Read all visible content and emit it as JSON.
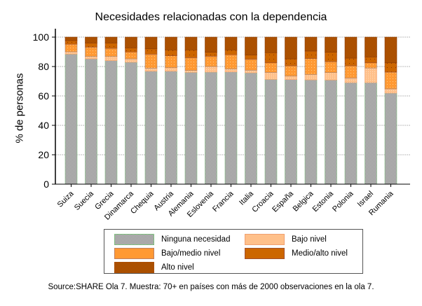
{
  "chart_data": {
    "type": "bar",
    "stacked": true,
    "title": "Necesidades relacionadas con la dependencia",
    "xlabel": "",
    "ylabel": "% de personas",
    "ylim": [
      0,
      100
    ],
    "yticks": [
      0,
      20,
      40,
      60,
      80,
      100
    ],
    "grid": true,
    "legend_position": "bottom",
    "categories": [
      "Suiza",
      "Suecia",
      "Grecia",
      "Dinamarca",
      "Chequia",
      "Austria",
      "Alemania",
      "Eslovenia",
      "Francia",
      "Italia",
      "Croacia",
      "España",
      "Belgica",
      "Estonia",
      "Polonia",
      "Israel",
      "Rumania"
    ],
    "series": [
      {
        "name": "Ninguna necesidad",
        "color": "#b4b4b4",
        "values": [
          88.4,
          85.2,
          84.0,
          82.9,
          76.8,
          76.8,
          76.0,
          76.2,
          76.3,
          75.7,
          71.2,
          71.1,
          70.9,
          70.8,
          69.0,
          69.0,
          61.9
        ]
      },
      {
        "name": "Bajo nivel",
        "color": "#ffc08a",
        "values": [
          1.6,
          1.6,
          2.8,
          2.3,
          2.1,
          2.4,
          1.3,
          3.8,
          2.1,
          1.8,
          4.8,
          2.4,
          3.7,
          5.1,
          3.2,
          10.0,
          2.9
        ]
      },
      {
        "name": "Bajo/medio nivel",
        "color": "#ff9933",
        "values": [
          5.2,
          6.4,
          5.6,
          4.7,
          9.5,
          8.1,
          8.7,
          7.0,
          9.6,
          7.5,
          6.5,
          7.0,
          10.8,
          7.4,
          8.3,
          3.5,
          11.4
        ]
      },
      {
        "name": "Medio/alto nivel",
        "color": "#cc6600",
        "values": [
          2.4,
          2.8,
          3.6,
          2.8,
          3.6,
          4.0,
          5.3,
          2.7,
          3.3,
          2.8,
          6.9,
          4.7,
          5.1,
          6.4,
          5.2,
          4.0,
          6.3
        ]
      },
      {
        "name": "Alto nivel",
        "color": "#a04800",
        "values": [
          2.4,
          4.0,
          4.0,
          7.3,
          8.0,
          8.7,
          8.7,
          10.3,
          8.7,
          12.2,
          10.6,
          14.8,
          9.5,
          10.3,
          14.3,
          13.5,
          17.5
        ]
      }
    ],
    "source": "Source:SHARE Ola 7. Muestra: 70+ en países con más de 2000 observaciones en la ola 7."
  }
}
